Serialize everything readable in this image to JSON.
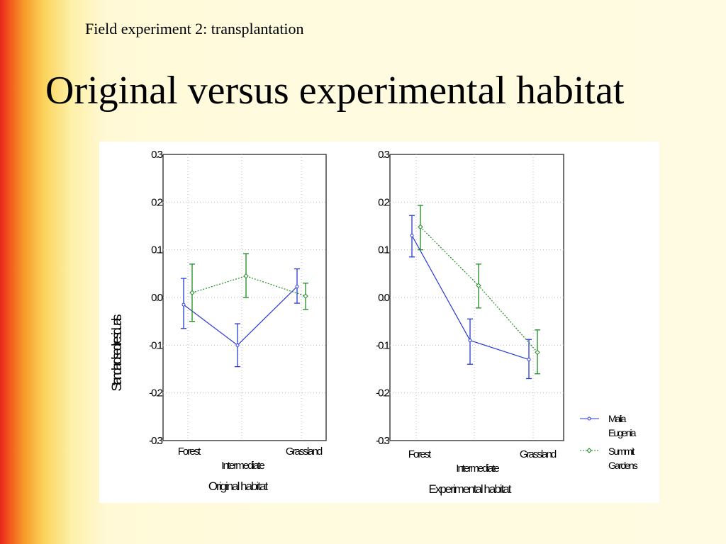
{
  "slide": {
    "subtitle": "Field experiment 2: transplantation",
    "title": "Original versus experimental habitat"
  },
  "colors": {
    "series1": "#2a3ad6",
    "series2": "#1e8a1e",
    "grid": "#b8b8b8"
  },
  "chart_data": [
    {
      "type": "line",
      "xlabel": "Original habitat",
      "ylabel": "Standardised residuals",
      "categories": [
        "Forest",
        "Intermediate",
        "Grassland"
      ],
      "ytick_labels": [
        "0.3",
        "0.2",
        "0.1",
        "0.0",
        "-0.1",
        "-0.2",
        "-0.3"
      ],
      "ylim": [
        -0.3,
        0.3
      ],
      "grid": true,
      "series": [
        {
          "name": "Malia Eugenia",
          "values": [
            -0.015,
            -0.1,
            0.023
          ],
          "err_low": [
            -0.065,
            -0.145,
            -0.012
          ],
          "err_high": [
            0.04,
            -0.055,
            0.06
          ]
        },
        {
          "name": "Summit Gardens",
          "values": [
            0.01,
            0.045,
            0.003
          ],
          "err_low": [
            -0.05,
            0.0,
            -0.025
          ],
          "err_high": [
            0.07,
            0.092,
            0.03
          ]
        }
      ]
    },
    {
      "type": "line",
      "xlabel": "Experimental habitat",
      "ylabel": "",
      "categories": [
        "Forest",
        "Intermediate",
        "Grassland"
      ],
      "ytick_labels": [
        "0.3",
        "0.2",
        "0.1",
        "0.0",
        "-0.1",
        "-0.2",
        "-0.3"
      ],
      "ylim": [
        -0.3,
        0.3
      ],
      "grid": true,
      "series": [
        {
          "name": "Malia Eugenia",
          "values": [
            0.13,
            -0.09,
            -0.13
          ],
          "err_low": [
            0.085,
            -0.14,
            -0.17
          ],
          "err_high": [
            0.172,
            -0.045,
            -0.088
          ]
        },
        {
          "name": "Summit Gardens",
          "values": [
            0.148,
            0.025,
            -0.115
          ],
          "err_low": [
            0.1,
            -0.022,
            -0.16
          ],
          "err_high": [
            0.193,
            0.07,
            -0.068
          ]
        }
      ]
    }
  ],
  "legend": [
    {
      "line1": "Malia",
      "line2": "Eugenia"
    },
    {
      "line1": "Summit",
      "line2": "Gardens"
    }
  ]
}
